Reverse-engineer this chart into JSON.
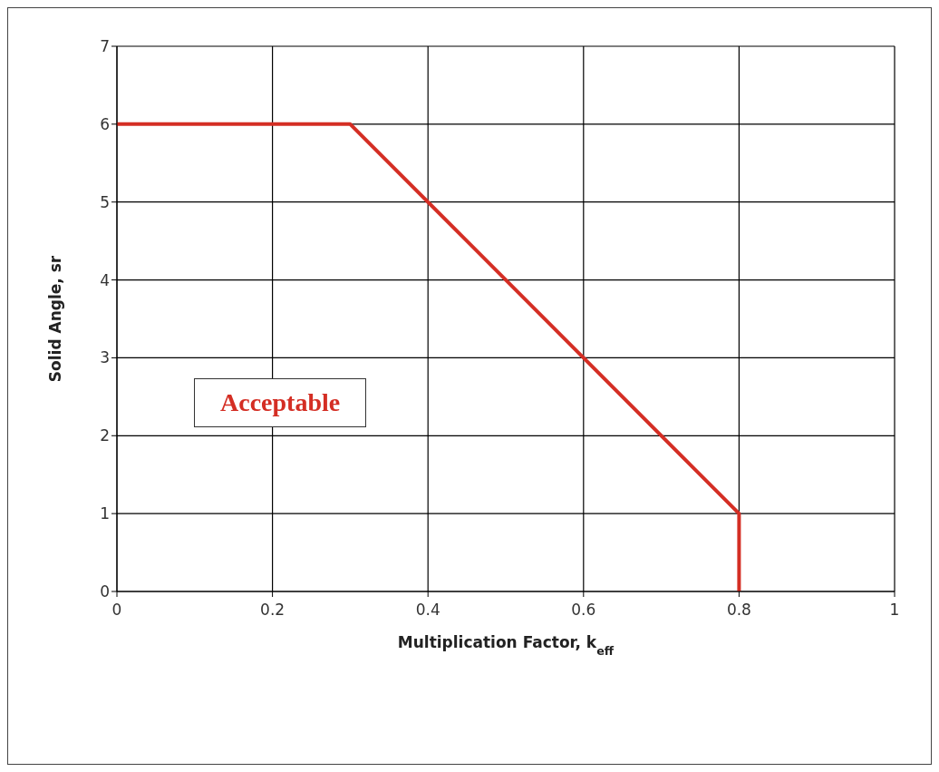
{
  "chart_data": {
    "type": "line",
    "xlabel": "Multiplication Factor, k$_{eff}$",
    "ylabel": "Solid Angle, sr",
    "x": [
      0,
      0.3,
      0.8,
      0.8
    ],
    "values": [
      6,
      6,
      1,
      0
    ],
    "color": "#d42e24",
    "line_style": "solid",
    "xlim": [
      0,
      1
    ],
    "xticks": [
      0,
      0.2,
      0.4,
      0.6,
      0.8,
      1
    ],
    "ylim": [
      0,
      7
    ],
    "yticks": [
      0,
      1,
      2,
      3,
      4,
      5,
      6,
      7
    ],
    "grid": true,
    "annotations": [
      "Acceptable"
    ]
  }
}
